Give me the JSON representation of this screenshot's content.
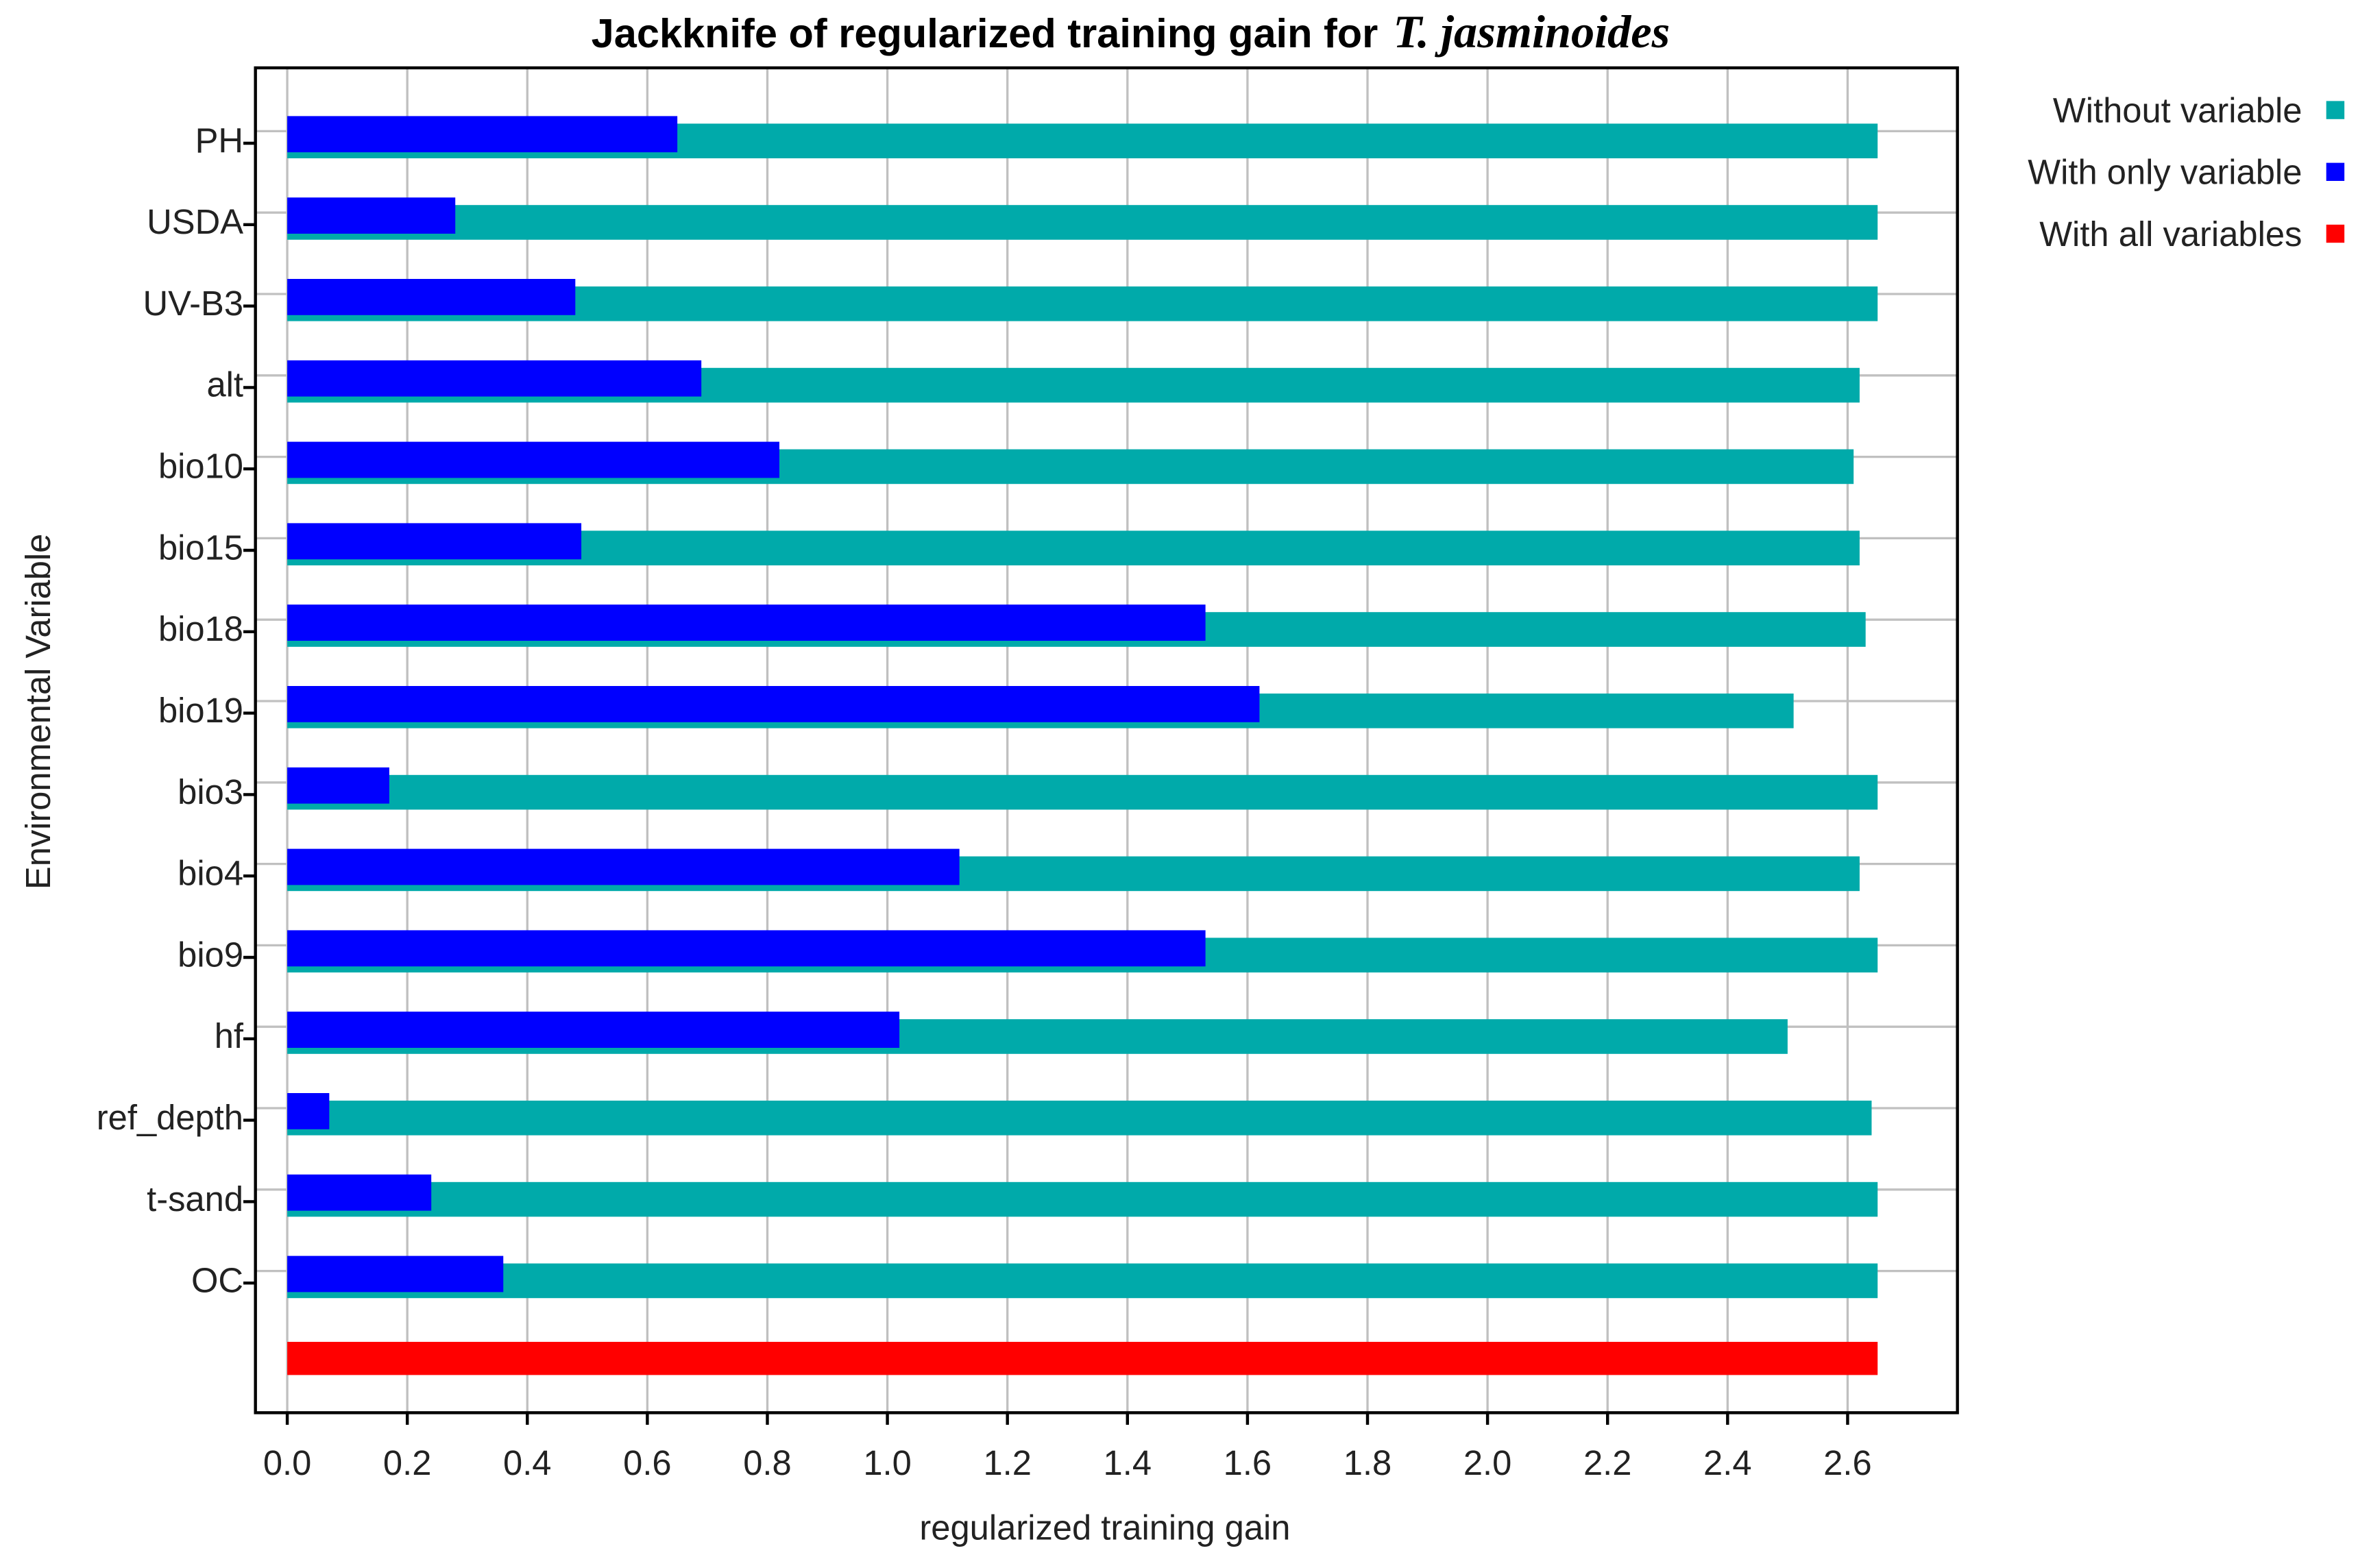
{
  "chart_data": {
    "type": "bar",
    "orientation": "horizontal",
    "title": "Jackknife of regularized training gain for",
    "title_species": "T. jasminoides",
    "xlabel": "regularized training gain",
    "ylabel": "Environmental Variable",
    "categories": [
      "PH",
      "USDA",
      "UV-B3",
      "alt",
      "bio10",
      "bio15",
      "bio18",
      "bio19",
      "bio3",
      "bio4",
      "bio9",
      "hf",
      "ref_depth",
      "t-sand",
      "OC"
    ],
    "series": [
      {
        "name": "Without variable",
        "color": "#00aaaa",
        "values": [
          2.65,
          2.65,
          2.65,
          2.62,
          2.61,
          2.62,
          2.63,
          2.51,
          2.65,
          2.62,
          2.65,
          2.5,
          2.64,
          2.65,
          2.65
        ]
      },
      {
        "name": "With only variable",
        "color": "#0000ff",
        "values": [
          0.65,
          0.28,
          0.48,
          0.69,
          0.82,
          0.49,
          1.53,
          1.62,
          0.17,
          1.12,
          1.53,
          1.02,
          0.07,
          0.24,
          0.36
        ]
      }
    ],
    "all_variables": {
      "name": "With all variables",
      "color": "#ff0000",
      "value": 2.65
    },
    "xlim": [
      -0.053,
      2.783
    ],
    "xticks": [
      {
        "value": 0,
        "label": "0.0"
      },
      0.2,
      0.4,
      0.6,
      0.8,
      {
        "value": 1,
        "label": "1.0"
      },
      1.2,
      1.4,
      1.6,
      1.8,
      {
        "value": 2,
        "label": "2.0"
      },
      2.2,
      2.4,
      2.6
    ],
    "grid": true,
    "legend": "outside-top-right"
  }
}
